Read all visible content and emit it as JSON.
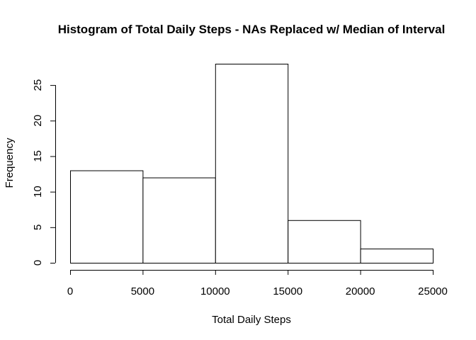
{
  "chart_data": {
    "type": "bar",
    "title": "Histogram of Total Daily Steps - NAs Replaced w/ Median of Interval",
    "xlabel": "Total Daily Steps",
    "ylabel": "Frequency",
    "bins": [
      {
        "start": 0,
        "end": 5000,
        "count": 13
      },
      {
        "start": 5000,
        "end": 10000,
        "count": 12
      },
      {
        "start": 10000,
        "end": 15000,
        "count": 28
      },
      {
        "start": 15000,
        "end": 20000,
        "count": 6
      },
      {
        "start": 20000,
        "end": 25000,
        "count": 2
      }
    ],
    "xlim": [
      0,
      25000
    ],
    "ylim": [
      0,
      28
    ],
    "xticks": [
      0,
      5000,
      10000,
      15000,
      20000,
      25000
    ],
    "yticks": [
      0,
      5,
      10,
      15,
      20,
      25
    ],
    "grid": false,
    "legend": "none"
  }
}
